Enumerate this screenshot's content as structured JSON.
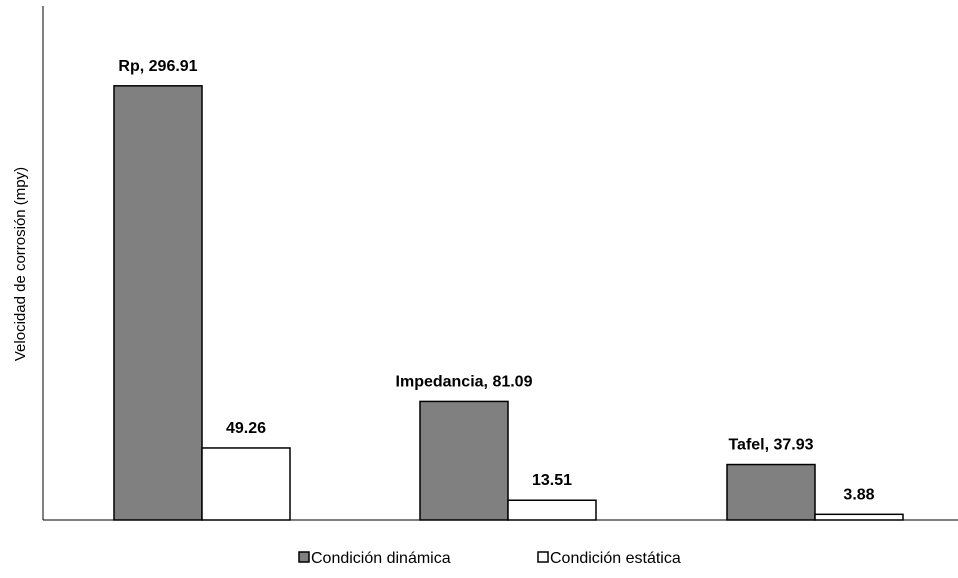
{
  "chart_data": {
    "type": "bar",
    "categories": [
      "Rp",
      "Impedancia",
      "Tafel"
    ],
    "series": [
      {
        "name": "Condición dinámica",
        "values": [
          296.91,
          81.09,
          37.93
        ],
        "labels": [
          "Rp, 296.91",
          "Impedancia, 81.09",
          "Tafel, 37.93"
        ],
        "color": "#808080"
      },
      {
        "name": "Condición estática",
        "values": [
          49.26,
          13.51,
          3.88
        ],
        "labels": [
          "49.26",
          "13.51",
          "3.88"
        ],
        "color": "#ffffff"
      }
    ],
    "title": "",
    "xlabel": "",
    "ylabel": "Velocidad de corrosión (mpy)",
    "ylim": [
      0,
      350
    ],
    "grid": false,
    "legend": "bottom"
  }
}
